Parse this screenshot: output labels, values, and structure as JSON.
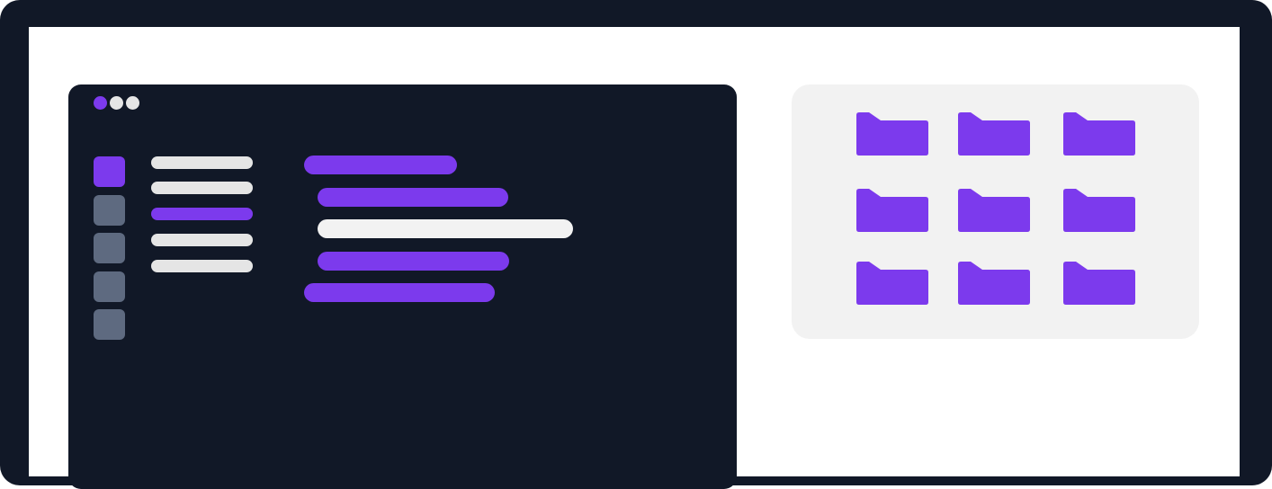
{
  "colors": {
    "frame": "#111827",
    "screen": "#ffffff",
    "editor_bg": "#111827",
    "accent": "#7c3aed",
    "light": "#e5e5e5",
    "sidebar_inactive": "#5e6a80",
    "file_panel_bg": "#f2f2f2"
  },
  "window_controls": [
    {
      "icon": "window-dot-icon",
      "color": "#7c3aed"
    },
    {
      "icon": "window-dot-icon",
      "color": "#e5e5e5"
    },
    {
      "icon": "window-dot-icon",
      "color": "#e5e5e5"
    }
  ],
  "sidebar_icons": [
    {
      "active": true
    },
    {
      "active": false
    },
    {
      "active": false
    },
    {
      "active": false
    },
    {
      "active": false
    }
  ],
  "file_tree_lines": [
    {
      "active": false
    },
    {
      "active": false
    },
    {
      "active": true
    },
    {
      "active": false
    },
    {
      "active": false
    }
  ],
  "code_lines": [
    {
      "indent": 0,
      "color": "#7c3aed"
    },
    {
      "indent": 1,
      "color": "#7c3aed"
    },
    {
      "indent": 1,
      "color": "#f2f2f2"
    },
    {
      "indent": 1,
      "color": "#7c3aed"
    },
    {
      "indent": 0,
      "color": "#7c3aed"
    }
  ],
  "folders": {
    "icon": "folder-icon",
    "rows": 3,
    "columns": 3,
    "count": 9
  }
}
